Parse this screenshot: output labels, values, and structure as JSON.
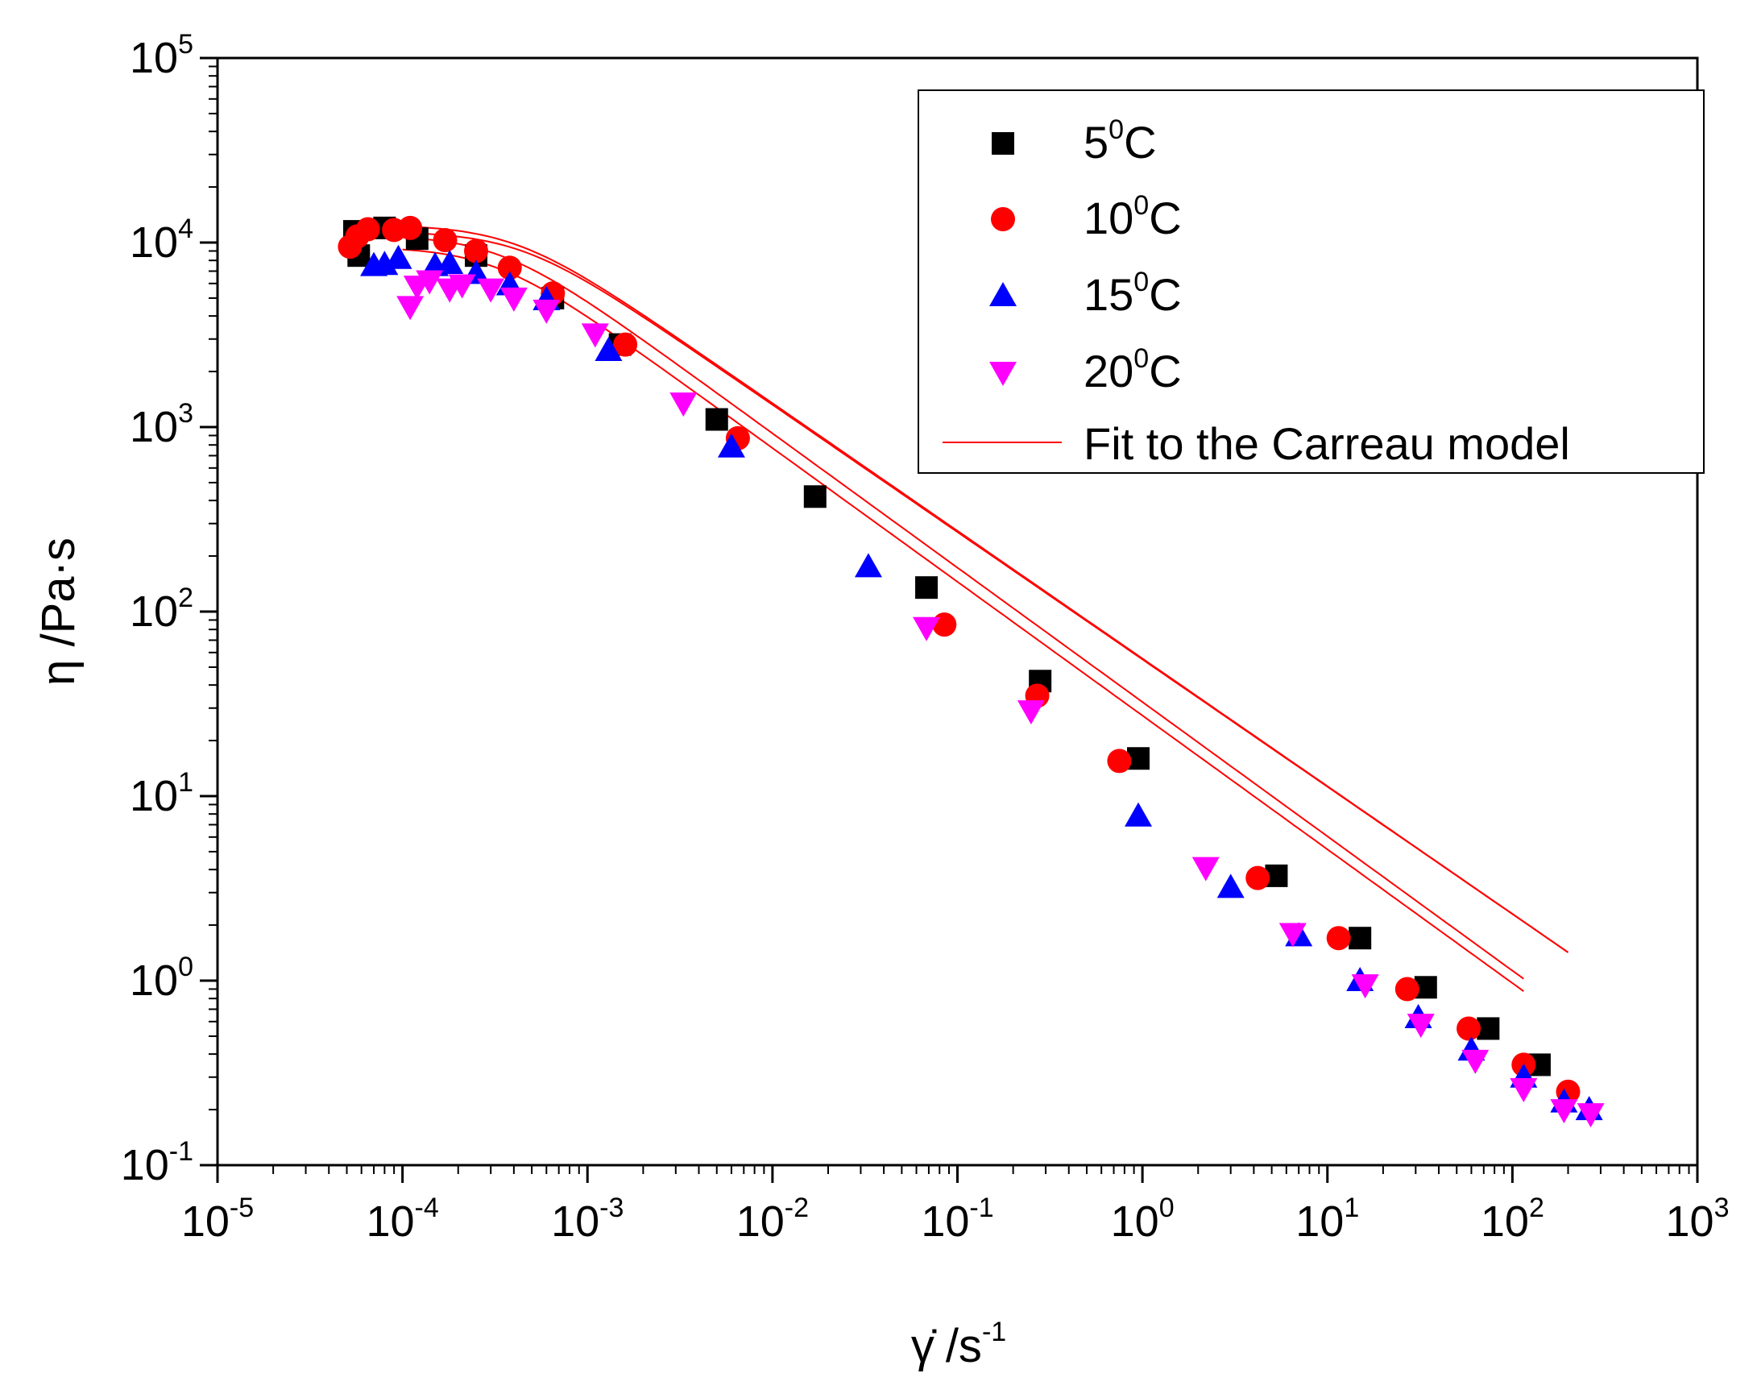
{
  "chart_data": {
    "type": "scatter",
    "x_scale": "log",
    "y_scale": "log",
    "xlim": [
      1e-05,
      1000
    ],
    "ylim": [
      0.1,
      100000
    ],
    "xlabel": {
      "symbol": "γ̇",
      "unit": "/s",
      "exp": "-1"
    },
    "ylabel": "η /Pa·s",
    "x_ticks": [
      {
        "base": "10",
        "exp": "-5"
      },
      {
        "base": "10",
        "exp": "-4"
      },
      {
        "base": "10",
        "exp": "-3"
      },
      {
        "base": "10",
        "exp": "-2"
      },
      {
        "base": "10",
        "exp": "-1"
      },
      {
        "base": "10",
        "exp": "0"
      },
      {
        "base": "10",
        "exp": "1"
      },
      {
        "base": "10",
        "exp": "2"
      },
      {
        "base": "10",
        "exp": "3"
      }
    ],
    "y_ticks": [
      {
        "base": "10",
        "exp": "-1"
      },
      {
        "base": "10",
        "exp": "0"
      },
      {
        "base": "10",
        "exp": "1"
      },
      {
        "base": "10",
        "exp": "2"
      },
      {
        "base": "10",
        "exp": "3"
      },
      {
        "base": "10",
        "exp": "4"
      },
      {
        "base": "10",
        "exp": "5"
      }
    ],
    "legend": {
      "position": "top-right",
      "entries": [
        {
          "base": "5",
          "sup": "0",
          "suffix": "C",
          "marker": "square",
          "color": "#000000"
        },
        {
          "base": "10",
          "sup": "0",
          "suffix": "C",
          "marker": "circle",
          "color": "#ff0000"
        },
        {
          "base": "15",
          "sup": "0",
          "suffix": "C",
          "marker": "triangle-up",
          "color": "#0000ff"
        },
        {
          "base": "20",
          "sup": "0",
          "suffix": "C",
          "marker": "triangle-down",
          "color": "#ff00ff"
        },
        {
          "text": "Fit to the Carreau model",
          "marker": "line",
          "color": "#ff0000"
        }
      ]
    },
    "series": [
      {
        "name": "5 0C",
        "marker": "square",
        "color": "#000000",
        "points": [
          [
            5.5e-05,
            11500
          ],
          [
            5.8e-05,
            8500
          ],
          [
            8e-05,
            12000
          ],
          [
            0.00012,
            10500
          ],
          [
            0.00025,
            8500
          ],
          [
            0.00065,
            5000
          ],
          [
            0.0015,
            2800
          ],
          [
            0.005,
            1100
          ],
          [
            0.017,
            420
          ],
          [
            0.068,
            135
          ],
          [
            0.28,
            42
          ],
          [
            0.95,
            16
          ],
          [
            5.3,
            3.7
          ],
          [
            15,
            1.7
          ],
          [
            34,
            0.92
          ],
          [
            74,
            0.55
          ],
          [
            140,
            0.35
          ]
        ]
      },
      {
        "name": "10 0C",
        "marker": "circle",
        "color": "#ff0000",
        "points": [
          [
            5.2e-05,
            9500
          ],
          [
            5.7e-05,
            10800
          ],
          [
            6.5e-05,
            11800
          ],
          [
            9e-05,
            11700
          ],
          [
            0.00011,
            12000
          ],
          [
            0.00017,
            10300
          ],
          [
            0.00025,
            9000
          ],
          [
            0.00038,
            7300
          ],
          [
            0.00065,
            5300
          ],
          [
            0.0016,
            2800
          ],
          [
            0.0065,
            870
          ],
          [
            0.085,
            85
          ],
          [
            0.27,
            35
          ],
          [
            0.75,
            15.5
          ],
          [
            4.2,
            3.6
          ],
          [
            11.5,
            1.7
          ],
          [
            27,
            0.9
          ],
          [
            58,
            0.55
          ],
          [
            115,
            0.35
          ],
          [
            200,
            0.25
          ]
        ]
      },
      {
        "name": "15 0C",
        "marker": "triangle-up",
        "color": "#0000ff",
        "points": [
          [
            7e-05,
            7500
          ],
          [
            8e-05,
            7600
          ],
          [
            9.5e-05,
            8200
          ],
          [
            0.00015,
            7500
          ],
          [
            0.00018,
            7700
          ],
          [
            0.00025,
            6800
          ],
          [
            0.00038,
            5900
          ],
          [
            0.0006,
            4900
          ],
          [
            0.0013,
            2600
          ],
          [
            0.006,
            780
          ],
          [
            0.033,
            175
          ],
          [
            0.95,
            7.8
          ],
          [
            3,
            3.2
          ],
          [
            7,
            1.75
          ],
          [
            15,
            1.0
          ],
          [
            31,
            0.63
          ],
          [
            60,
            0.42
          ],
          [
            115,
            0.3
          ],
          [
            190,
            0.22
          ],
          [
            260,
            0.2
          ]
        ]
      },
      {
        "name": "20 0C",
        "marker": "triangle-down",
        "color": "#ff00ff",
        "points": [
          [
            0.00011,
            4500
          ],
          [
            0.00012,
            5800
          ],
          [
            0.00014,
            6200
          ],
          [
            0.00018,
            5600
          ],
          [
            0.00021,
            5900
          ],
          [
            0.0003,
            5600
          ],
          [
            0.0004,
            5000
          ],
          [
            0.0006,
            4300
          ],
          [
            0.0011,
            3200
          ],
          [
            0.0033,
            1350
          ],
          [
            0.068,
            82
          ],
          [
            0.25,
            29
          ],
          [
            2.2,
            4.1
          ],
          [
            6.5,
            1.8
          ],
          [
            16,
            0.95
          ],
          [
            32,
            0.58
          ],
          [
            63,
            0.37
          ],
          [
            115,
            0.26
          ],
          [
            190,
            0.2
          ],
          [
            265,
            0.19
          ]
        ]
      }
    ],
    "fits": [
      {
        "eta0": 12500,
        "lambda": 2500,
        "n": 0.308,
        "x_range": [
          0.0001,
          200
        ]
      },
      {
        "eta0": 11500,
        "lambda": 2300,
        "n": 0.31,
        "x_range": [
          0.0001,
          200
        ]
      },
      {
        "eta0": 11000,
        "lambda": 3000,
        "n": 0.272,
        "x_range": [
          0.0001,
          115
        ]
      },
      {
        "eta0": 9500,
        "lambda": 3200,
        "n": 0.275,
        "x_range": [
          0.0001,
          115
        ]
      }
    ]
  }
}
